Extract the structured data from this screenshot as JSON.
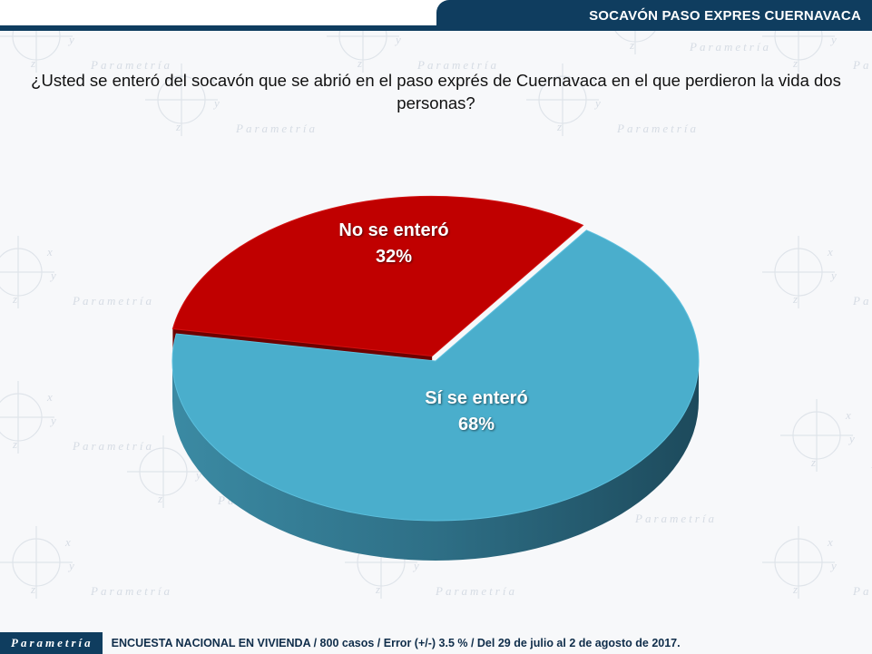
{
  "header": {
    "title": "SOCAVÓN PASO EXPRES CUERNAVACA"
  },
  "question": "¿Usted se enteró del socavón que se abrió en el paso exprés de Cuernavaca en el que perdieron la vida dos personas?",
  "chart_data": {
    "type": "pie",
    "title": "",
    "slices": [
      {
        "label": "Sí se enteró",
        "value": 68,
        "display": "68%",
        "color": "#4aaecc"
      },
      {
        "label": "No se enteró",
        "value": 32,
        "display": "32%",
        "color": "#c00000"
      }
    ]
  },
  "footer": {
    "brand": "Parametría",
    "note": "ENCUESTA NACIONAL EN VIVIENDA / 800 casos / Error (+/-) 3.5 % / Del 29 de julio al 2 de agosto de 2017."
  },
  "watermark": {
    "word": "Parametría",
    "x": "x",
    "y": "y",
    "z": "z"
  }
}
